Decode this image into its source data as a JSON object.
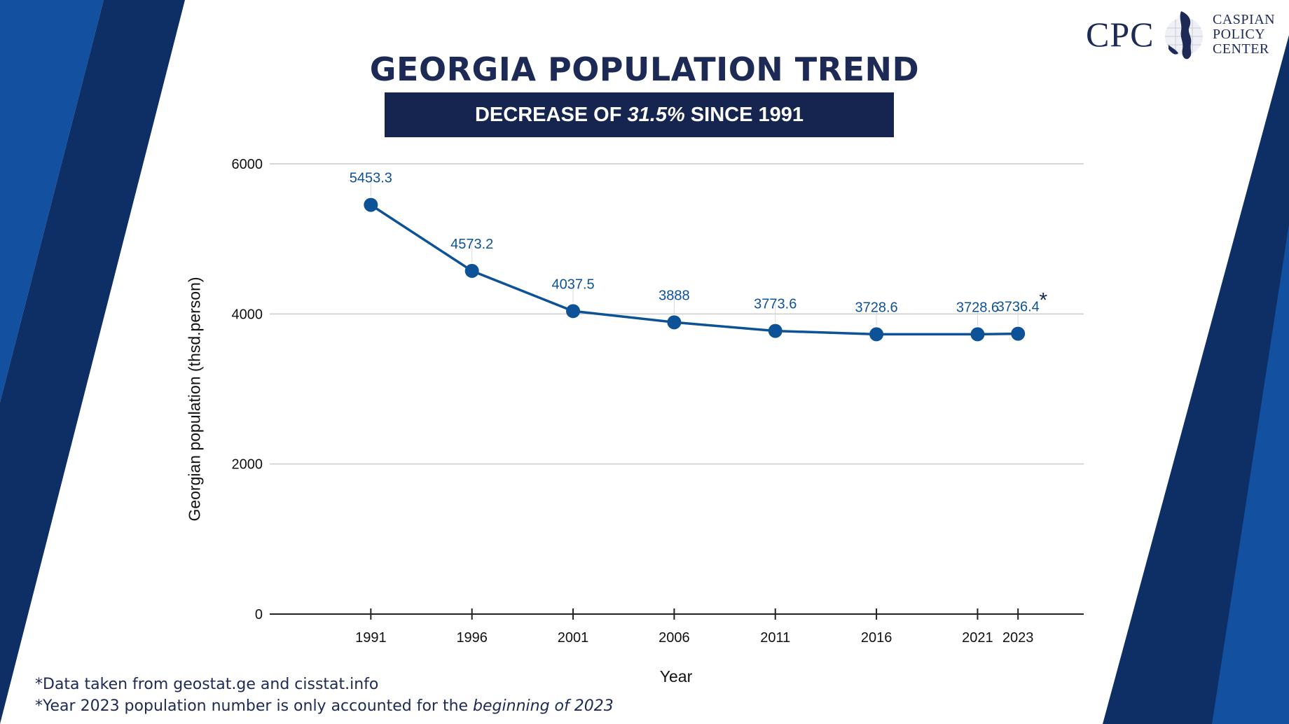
{
  "title": "GEORGIA POPULATION TREND",
  "banner": {
    "prefix": "DECREASE OF ",
    "percent": "31.5%",
    "suffix": " SINCE 1991"
  },
  "logo": {
    "abbr": "CPC",
    "line1": "CASPIAN",
    "line2": "POLICY",
    "line3": "CENTER"
  },
  "chart_data": {
    "type": "line",
    "categories": [
      "1991",
      "1996",
      "2001",
      "2006",
      "2011",
      "2016",
      "2021",
      "2023"
    ],
    "values": [
      5453.3,
      4573.2,
      4037.5,
      3888,
      3773.6,
      3728.6,
      3728.6,
      3736.4
    ],
    "data_labels": [
      "5453.3",
      "4573.2",
      "4037.5",
      "3888",
      "3773.6",
      "3728.6",
      "3728.6",
      "3736.4"
    ],
    "ylim": [
      0,
      6000
    ],
    "yticks": [
      0,
      2000,
      4000,
      6000
    ],
    "xlabel": "Year",
    "ylabel": "Georgian population (thsd.person)",
    "annotation": "*",
    "grid": true,
    "legend": "none",
    "line_color": "#0d5296"
  },
  "footnotes": {
    "line1": "*Data taken from geostat.ge and cisstat.info",
    "line2_prefix": "*Year 2023 population number is only accounted for the ",
    "line2_italic": "beginning of 2023"
  },
  "colors": {
    "navy": "#16254f",
    "blue": "#1350a0",
    "dark_blue": "#0d2f66"
  }
}
